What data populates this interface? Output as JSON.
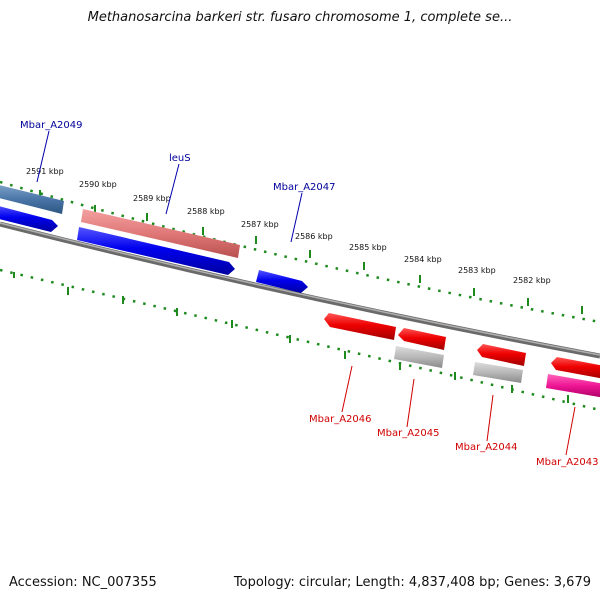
{
  "title": "Methanosarcina barkeri str. fusaro chromosome 1, complete se...",
  "footer": {
    "accession": "Accession: NC_007355",
    "summary": "Topology: circular; Length: 4,837,408 bp; Genes: 3,679"
  },
  "colors": {
    "backbone": "#808080",
    "ticks": "#1e8a1e",
    "forward_gene": "#0000ee",
    "reverse_gene": "#ee0000",
    "label_forward": "#00009a",
    "label_reverse": "#d00000"
  },
  "scale_labels": [
    "2591 kbp",
    "2590 kbp",
    "2589 kbp",
    "2588 kbp",
    "2587 kbp",
    "2586 kbp",
    "2585 kbp",
    "2584 kbp",
    "2583 kbp",
    "2582 kbp"
  ],
  "gene_labels": [
    {
      "text": "Mbar_A2049",
      "strand": "forward"
    },
    {
      "text": "leuS",
      "strand": "forward"
    },
    {
      "text": "Mbar_A2047",
      "strand": "forward"
    },
    {
      "text": "Mbar_A2046",
      "strand": "reverse"
    },
    {
      "text": "Mbar_A2045",
      "strand": "reverse"
    },
    {
      "text": "Mbar_A2044",
      "strand": "reverse"
    },
    {
      "text": "Mbar_A2043",
      "strand": "reverse"
    }
  ]
}
